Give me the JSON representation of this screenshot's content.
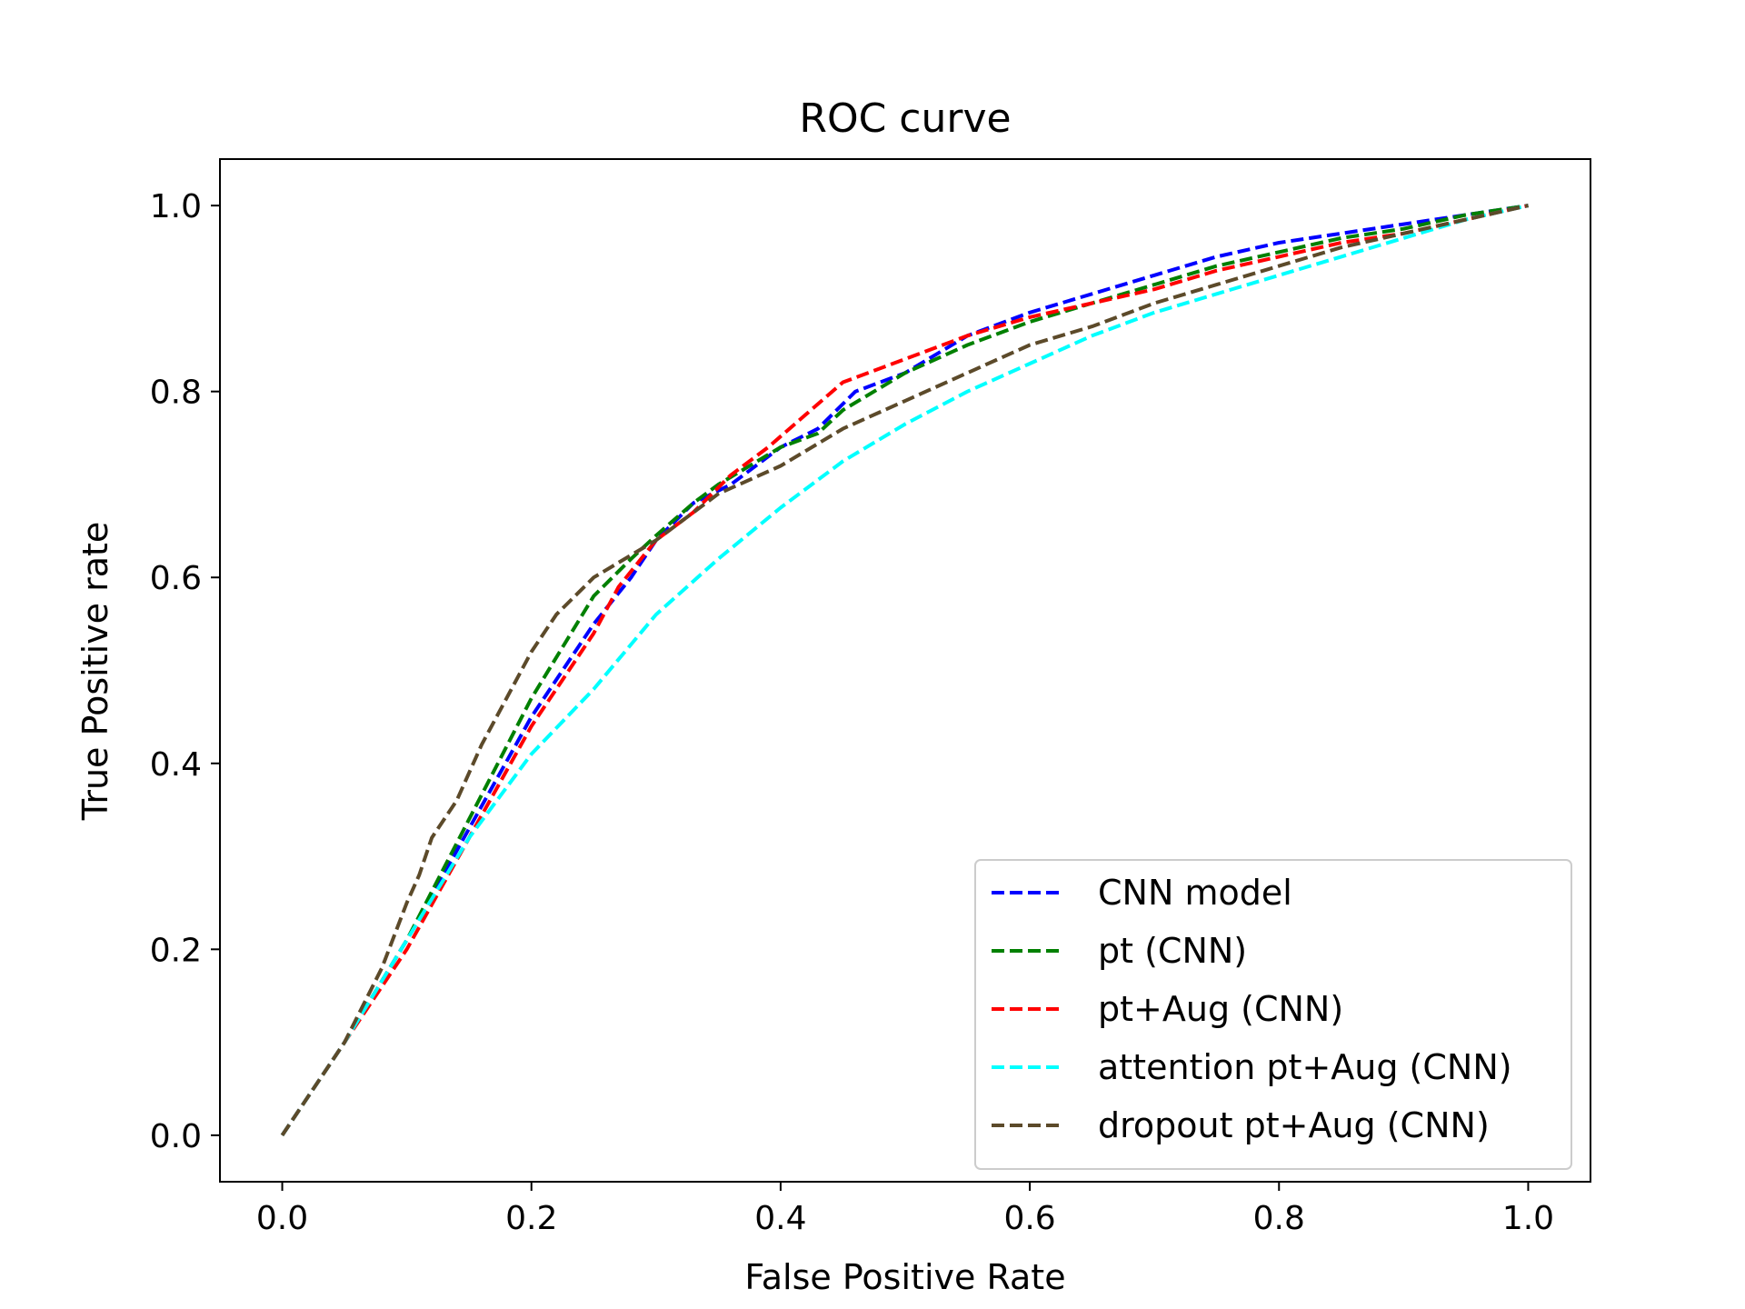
{
  "chart_data": {
    "type": "line",
    "title": "ROC curve",
    "xlabel": "False Positive Rate",
    "ylabel": "True Positive rate",
    "xlim": [
      -0.05,
      1.05
    ],
    "ylim": [
      -0.05,
      1.05
    ],
    "xticks": [
      0.0,
      0.2,
      0.4,
      0.6,
      0.8,
      1.0
    ],
    "yticks": [
      0.0,
      0.2,
      0.4,
      0.6,
      0.8,
      1.0
    ],
    "xtick_labels": [
      "0.0",
      "0.2",
      "0.4",
      "0.6",
      "0.8",
      "1.0"
    ],
    "ytick_labels": [
      "0.0",
      "0.2",
      "0.4",
      "0.6",
      "0.8",
      "1.0"
    ],
    "grid": false,
    "legend_position": "lower-right",
    "series": [
      {
        "name": "CNN model",
        "color": "#0000ff",
        "line_style": "dashed",
        "points": [
          [
            0.0,
            0.0
          ],
          [
            0.05,
            0.1
          ],
          [
            0.1,
            0.21
          ],
          [
            0.15,
            0.33
          ],
          [
            0.2,
            0.45
          ],
          [
            0.25,
            0.55
          ],
          [
            0.28,
            0.6
          ],
          [
            0.3,
            0.64
          ],
          [
            0.33,
            0.68
          ],
          [
            0.36,
            0.7
          ],
          [
            0.4,
            0.74
          ],
          [
            0.43,
            0.76
          ],
          [
            0.46,
            0.8
          ],
          [
            0.5,
            0.82
          ],
          [
            0.55,
            0.86
          ],
          [
            0.6,
            0.885
          ],
          [
            0.65,
            0.905
          ],
          [
            0.7,
            0.925
          ],
          [
            0.75,
            0.945
          ],
          [
            0.8,
            0.96
          ],
          [
            0.85,
            0.97
          ],
          [
            0.9,
            0.98
          ],
          [
            0.95,
            0.99
          ],
          [
            1.0,
            1.0
          ]
        ]
      },
      {
        "name": "pt (CNN)",
        "color": "#008000",
        "line_style": "dashed",
        "points": [
          [
            0.0,
            0.0
          ],
          [
            0.05,
            0.1
          ],
          [
            0.1,
            0.21
          ],
          [
            0.15,
            0.34
          ],
          [
            0.2,
            0.47
          ],
          [
            0.25,
            0.58
          ],
          [
            0.28,
            0.62
          ],
          [
            0.3,
            0.645
          ],
          [
            0.33,
            0.68
          ],
          [
            0.35,
            0.7
          ],
          [
            0.4,
            0.74
          ],
          [
            0.43,
            0.755
          ],
          [
            0.45,
            0.78
          ],
          [
            0.5,
            0.82
          ],
          [
            0.55,
            0.85
          ],
          [
            0.6,
            0.875
          ],
          [
            0.65,
            0.895
          ],
          [
            0.7,
            0.915
          ],
          [
            0.75,
            0.935
          ],
          [
            0.8,
            0.95
          ],
          [
            0.85,
            0.965
          ],
          [
            0.9,
            0.975
          ],
          [
            0.95,
            0.99
          ],
          [
            1.0,
            1.0
          ]
        ]
      },
      {
        "name": "pt+Aug (CNN)",
        "color": "#ff0000",
        "line_style": "dashed",
        "points": [
          [
            0.0,
            0.0
          ],
          [
            0.05,
            0.1
          ],
          [
            0.1,
            0.2
          ],
          [
            0.15,
            0.32
          ],
          [
            0.2,
            0.44
          ],
          [
            0.25,
            0.54
          ],
          [
            0.27,
            0.59
          ],
          [
            0.3,
            0.64
          ],
          [
            0.33,
            0.67
          ],
          [
            0.36,
            0.71
          ],
          [
            0.39,
            0.74
          ],
          [
            0.42,
            0.775
          ],
          [
            0.45,
            0.81
          ],
          [
            0.5,
            0.835
          ],
          [
            0.55,
            0.86
          ],
          [
            0.6,
            0.88
          ],
          [
            0.65,
            0.895
          ],
          [
            0.7,
            0.91
          ],
          [
            0.75,
            0.93
          ],
          [
            0.8,
            0.945
          ],
          [
            0.85,
            0.96
          ],
          [
            0.9,
            0.97
          ],
          [
            0.95,
            0.985
          ],
          [
            1.0,
            1.0
          ]
        ]
      },
      {
        "name": "attention pt+Aug (CNN)",
        "color": "#00ffff",
        "line_style": "dashed",
        "points": [
          [
            0.0,
            0.0
          ],
          [
            0.05,
            0.1
          ],
          [
            0.1,
            0.21
          ],
          [
            0.15,
            0.32
          ],
          [
            0.2,
            0.41
          ],
          [
            0.25,
            0.48
          ],
          [
            0.3,
            0.56
          ],
          [
            0.35,
            0.62
          ],
          [
            0.4,
            0.675
          ],
          [
            0.45,
            0.725
          ],
          [
            0.5,
            0.765
          ],
          [
            0.55,
            0.8
          ],
          [
            0.6,
            0.83
          ],
          [
            0.65,
            0.86
          ],
          [
            0.7,
            0.885
          ],
          [
            0.75,
            0.905
          ],
          [
            0.8,
            0.925
          ],
          [
            0.85,
            0.945
          ],
          [
            0.9,
            0.965
          ],
          [
            0.95,
            0.985
          ],
          [
            1.0,
            1.0
          ]
        ]
      },
      {
        "name": "dropout pt+Aug (CNN)",
        "color": "#5c4a2a",
        "line_style": "dashed",
        "points": [
          [
            0.0,
            0.0
          ],
          [
            0.05,
            0.1
          ],
          [
            0.08,
            0.18
          ],
          [
            0.1,
            0.25
          ],
          [
            0.11,
            0.28
          ],
          [
            0.12,
            0.32
          ],
          [
            0.14,
            0.36
          ],
          [
            0.16,
            0.42
          ],
          [
            0.18,
            0.47
          ],
          [
            0.2,
            0.52
          ],
          [
            0.22,
            0.56
          ],
          [
            0.25,
            0.6
          ],
          [
            0.3,
            0.64
          ],
          [
            0.35,
            0.69
          ],
          [
            0.4,
            0.72
          ],
          [
            0.45,
            0.76
          ],
          [
            0.5,
            0.79
          ],
          [
            0.55,
            0.82
          ],
          [
            0.6,
            0.85
          ],
          [
            0.65,
            0.87
          ],
          [
            0.7,
            0.895
          ],
          [
            0.75,
            0.915
          ],
          [
            0.8,
            0.935
          ],
          [
            0.85,
            0.955
          ],
          [
            0.9,
            0.97
          ],
          [
            0.95,
            0.985
          ],
          [
            1.0,
            1.0
          ]
        ]
      }
    ]
  }
}
